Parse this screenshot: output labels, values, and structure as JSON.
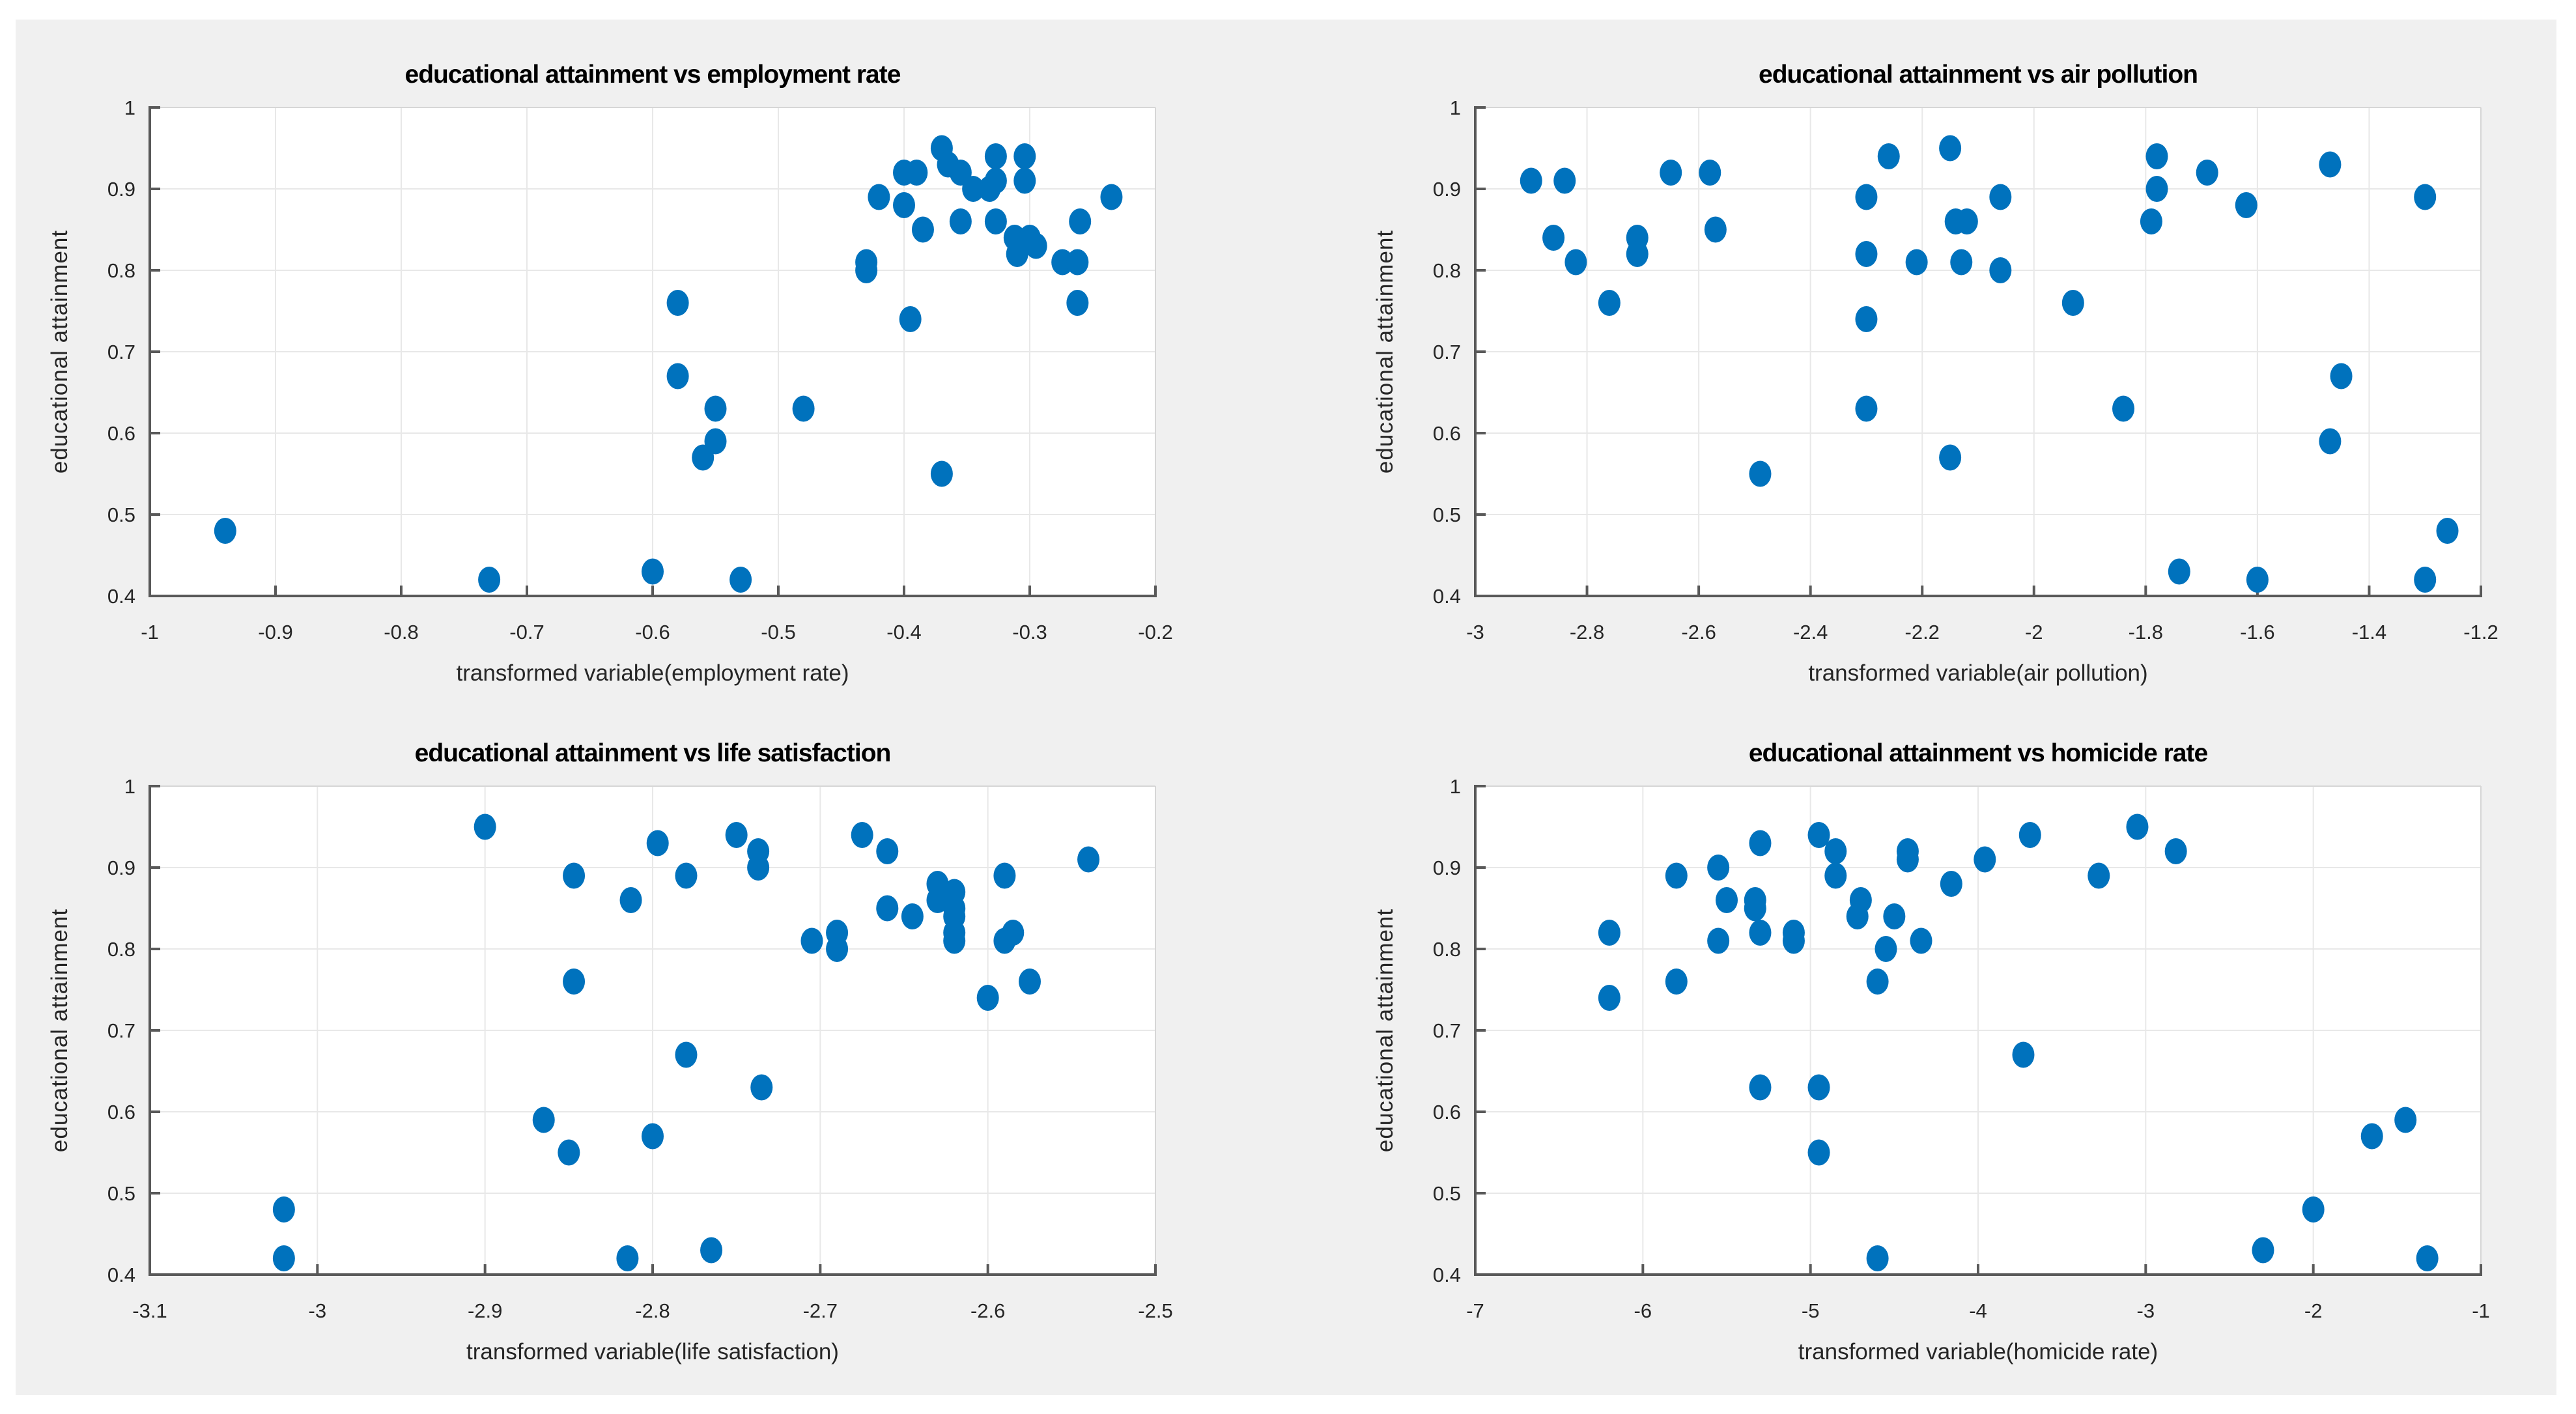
{
  "figure": {
    "page_background": "#ffffff",
    "figure_background": "#f0f0f0",
    "plot_background": "#ffffff",
    "marker_color": "#0072bd",
    "grid_color": "#e8e8e8",
    "axis_color": "#595959",
    "box_edge_color": "#d6d6d6",
    "tick_text_color": "#262626",
    "title_color": "#000000"
  },
  "chart_data": [
    {
      "id": "employment-rate",
      "type": "scatter",
      "title": "educational attainment vs employment rate",
      "xlabel": "transformed variable(employment rate)",
      "ylabel": "educational attainment",
      "xlim": [
        -1,
        -0.2
      ],
      "ylim": [
        0.4,
        1
      ],
      "grid": true,
      "legend": "none",
      "xticks": [
        -1,
        -0.9,
        -0.8,
        -0.7,
        -0.6,
        -0.5,
        -0.4,
        -0.3,
        -0.2
      ],
      "xtick_labels": [
        "-1",
        "-0.9",
        "-0.8",
        "-0.7",
        "-0.6",
        "-0.5",
        "-0.4",
        "-0.3",
        "-0.2"
      ],
      "yticks": [
        0.4,
        0.5,
        0.6,
        0.7,
        0.8,
        0.9,
        1
      ],
      "ytick_labels": [
        "0.4",
        "0.5",
        "0.6",
        "0.7",
        "0.8",
        "0.9",
        "1"
      ],
      "points": [
        [
          -0.94,
          0.48
        ],
        [
          -0.73,
          0.42
        ],
        [
          -0.6,
          0.43
        ],
        [
          -0.53,
          0.42
        ],
        [
          -0.58,
          0.76
        ],
        [
          -0.58,
          0.67
        ],
        [
          -0.55,
          0.63
        ],
        [
          -0.55,
          0.59
        ],
        [
          -0.56,
          0.57
        ],
        [
          -0.48,
          0.63
        ],
        [
          -0.43,
          0.8
        ],
        [
          -0.43,
          0.81
        ],
        [
          -0.42,
          0.89
        ],
        [
          -0.4,
          0.92
        ],
        [
          -0.4,
          0.88
        ],
        [
          -0.39,
          0.92
        ],
        [
          -0.395,
          0.74
        ],
        [
          -0.37,
          0.95
        ],
        [
          -0.365,
          0.93
        ],
        [
          -0.355,
          0.92
        ],
        [
          -0.385,
          0.85
        ],
        [
          -0.355,
          0.86
        ],
        [
          -0.37,
          0.55
        ],
        [
          -0.345,
          0.9
        ],
        [
          -0.332,
          0.9
        ],
        [
          -0.327,
          0.94
        ],
        [
          -0.327,
          0.91
        ],
        [
          -0.327,
          0.86
        ],
        [
          -0.312,
          0.84
        ],
        [
          -0.304,
          0.94
        ],
        [
          -0.304,
          0.91
        ],
        [
          -0.3,
          0.84
        ],
        [
          -0.295,
          0.83
        ],
        [
          -0.31,
          0.82
        ],
        [
          -0.26,
          0.86
        ],
        [
          -0.274,
          0.81
        ],
        [
          -0.262,
          0.81
        ],
        [
          -0.262,
          0.76
        ],
        [
          -0.235,
          0.89
        ]
      ]
    },
    {
      "id": "air-pollution",
      "type": "scatter",
      "title": "educational attainment vs air pollution",
      "xlabel": "transformed variable(air pollution)",
      "ylabel": "educational attainment",
      "xlim": [
        -3,
        -1.2
      ],
      "ylim": [
        0.4,
        1
      ],
      "grid": true,
      "legend": "none",
      "xticks": [
        -3,
        -2.8,
        -2.6,
        -2.4,
        -2.2,
        -2,
        -1.8,
        -1.6,
        -1.4,
        -1.2
      ],
      "xtick_labels": [
        "-3",
        "-2.8",
        "-2.6",
        "-2.4",
        "-2.2",
        "-2",
        "-1.8",
        "-1.6",
        "-1.4",
        "-1.2"
      ],
      "yticks": [
        0.4,
        0.5,
        0.6,
        0.7,
        0.8,
        0.9,
        1
      ],
      "ytick_labels": [
        "0.4",
        "0.5",
        "0.6",
        "0.7",
        "0.8",
        "0.9",
        "1"
      ],
      "points": [
        [
          -2.9,
          0.91
        ],
        [
          -2.84,
          0.91
        ],
        [
          -2.86,
          0.84
        ],
        [
          -2.82,
          0.81
        ],
        [
          -2.76,
          0.76
        ],
        [
          -2.71,
          0.84
        ],
        [
          -2.71,
          0.82
        ],
        [
          -2.65,
          0.92
        ],
        [
          -2.58,
          0.92
        ],
        [
          -2.57,
          0.85
        ],
        [
          -2.49,
          0.55
        ],
        [
          -2.3,
          0.89
        ],
        [
          -2.3,
          0.82
        ],
        [
          -2.3,
          0.74
        ],
        [
          -2.3,
          0.63
        ],
        [
          -2.26,
          0.94
        ],
        [
          -2.15,
          0.95
        ],
        [
          -2.21,
          0.81
        ],
        [
          -2.14,
          0.86
        ],
        [
          -2.12,
          0.86
        ],
        [
          -2.13,
          0.81
        ],
        [
          -2.06,
          0.89
        ],
        [
          -2.06,
          0.8
        ],
        [
          -2.15,
          0.57
        ],
        [
          -1.93,
          0.76
        ],
        [
          -1.84,
          0.63
        ],
        [
          -1.78,
          0.94
        ],
        [
          -1.78,
          0.9
        ],
        [
          -1.79,
          0.86
        ],
        [
          -1.69,
          0.92
        ],
        [
          -1.62,
          0.88
        ],
        [
          -1.74,
          0.43
        ],
        [
          -1.6,
          0.42
        ],
        [
          -1.47,
          0.93
        ],
        [
          -1.45,
          0.67
        ],
        [
          -1.47,
          0.59
        ],
        [
          -1.3,
          0.89
        ],
        [
          -1.26,
          0.48
        ],
        [
          -1.3,
          0.42
        ]
      ]
    },
    {
      "id": "life-satisfaction",
      "type": "scatter",
      "title": "educational attainment vs life satisfaction",
      "xlabel": "transformed variable(life satisfaction)",
      "ylabel": "educational attainment",
      "xlim": [
        -3.1,
        -2.5
      ],
      "ylim": [
        0.4,
        1
      ],
      "grid": true,
      "legend": "none",
      "xticks": [
        -3.1,
        -3,
        -2.9,
        -2.8,
        -2.7,
        -2.6,
        -2.5
      ],
      "xtick_labels": [
        "-3.1",
        "-3",
        "-2.9",
        "-2.8",
        "-2.7",
        "-2.6",
        "-2.5"
      ],
      "yticks": [
        0.4,
        0.5,
        0.6,
        0.7,
        0.8,
        0.9,
        1
      ],
      "ytick_labels": [
        "0.4",
        "0.5",
        "0.6",
        "0.7",
        "0.8",
        "0.9",
        "1"
      ],
      "points": [
        [
          -3.02,
          0.48
        ],
        [
          -3.02,
          0.42
        ],
        [
          -2.9,
          0.95
        ],
        [
          -2.847,
          0.89
        ],
        [
          -2.847,
          0.76
        ],
        [
          -2.85,
          0.55
        ],
        [
          -2.865,
          0.59
        ],
        [
          -2.813,
          0.86
        ],
        [
          -2.815,
          0.42
        ],
        [
          -2.797,
          0.93
        ],
        [
          -2.8,
          0.57
        ],
        [
          -2.78,
          0.89
        ],
        [
          -2.78,
          0.67
        ],
        [
          -2.765,
          0.43
        ],
        [
          -2.75,
          0.94
        ],
        [
          -2.737,
          0.92
        ],
        [
          -2.737,
          0.9
        ],
        [
          -2.735,
          0.63
        ],
        [
          -2.675,
          0.94
        ],
        [
          -2.66,
          0.92
        ],
        [
          -2.705,
          0.81
        ],
        [
          -2.69,
          0.82
        ],
        [
          -2.69,
          0.8
        ],
        [
          -2.66,
          0.85
        ],
        [
          -2.645,
          0.84
        ],
        [
          -2.63,
          0.88
        ],
        [
          -2.63,
          0.86
        ],
        [
          -2.62,
          0.87
        ],
        [
          -2.62,
          0.85
        ],
        [
          -2.62,
          0.84
        ],
        [
          -2.62,
          0.82
        ],
        [
          -2.62,
          0.81
        ],
        [
          -2.59,
          0.89
        ],
        [
          -2.585,
          0.82
        ],
        [
          -2.59,
          0.81
        ],
        [
          -2.6,
          0.74
        ],
        [
          -2.575,
          0.76
        ],
        [
          -2.54,
          0.91
        ]
      ]
    },
    {
      "id": "homicide-rate",
      "type": "scatter",
      "title": "educational attainment vs homicide rate",
      "xlabel": "transformed variable(homicide rate)",
      "ylabel": "educational attainment",
      "xlim": [
        -7,
        -1
      ],
      "ylim": [
        0.4,
        1
      ],
      "grid": true,
      "legend": "none",
      "xticks": [
        -7,
        -6,
        -5,
        -4,
        -3,
        -2,
        -1
      ],
      "xtick_labels": [
        "-7",
        "-6",
        "-5",
        "-4",
        "-3",
        "-2",
        "-1"
      ],
      "yticks": [
        0.4,
        0.5,
        0.6,
        0.7,
        0.8,
        0.9,
        1
      ],
      "ytick_labels": [
        "0.4",
        "0.5",
        "0.6",
        "0.7",
        "0.8",
        "0.9",
        "1"
      ],
      "points": [
        [
          -6.2,
          0.82
        ],
        [
          -6.2,
          0.74
        ],
        [
          -5.8,
          0.89
        ],
        [
          -5.8,
          0.76
        ],
        [
          -5.55,
          0.9
        ],
        [
          -5.5,
          0.86
        ],
        [
          -5.55,
          0.81
        ],
        [
          -5.3,
          0.93
        ],
        [
          -5.33,
          0.86
        ],
        [
          -5.33,
          0.85
        ],
        [
          -5.3,
          0.82
        ],
        [
          -5.3,
          0.63
        ],
        [
          -5.1,
          0.82
        ],
        [
          -5.1,
          0.81
        ],
        [
          -4.95,
          0.94
        ],
        [
          -4.95,
          0.63
        ],
        [
          -4.95,
          0.55
        ],
        [
          -4.42,
          0.92
        ],
        [
          -4.42,
          0.91
        ],
        [
          -4.85,
          0.92
        ],
        [
          -4.85,
          0.89
        ],
        [
          -4.7,
          0.86
        ],
        [
          -4.72,
          0.84
        ],
        [
          -4.6,
          0.76
        ],
        [
          -4.6,
          0.42
        ],
        [
          -4.5,
          0.84
        ],
        [
          -4.55,
          0.8
        ],
        [
          -4.34,
          0.81
        ],
        [
          -4.16,
          0.88
        ],
        [
          -3.96,
          0.91
        ],
        [
          -3.69,
          0.94
        ],
        [
          -3.73,
          0.67
        ],
        [
          -3.28,
          0.89
        ],
        [
          -3.05,
          0.95
        ],
        [
          -2.82,
          0.92
        ],
        [
          -2.3,
          0.43
        ],
        [
          -2.0,
          0.48
        ],
        [
          -1.65,
          0.57
        ],
        [
          -1.45,
          0.59
        ],
        [
          -1.32,
          0.42
        ]
      ]
    }
  ]
}
